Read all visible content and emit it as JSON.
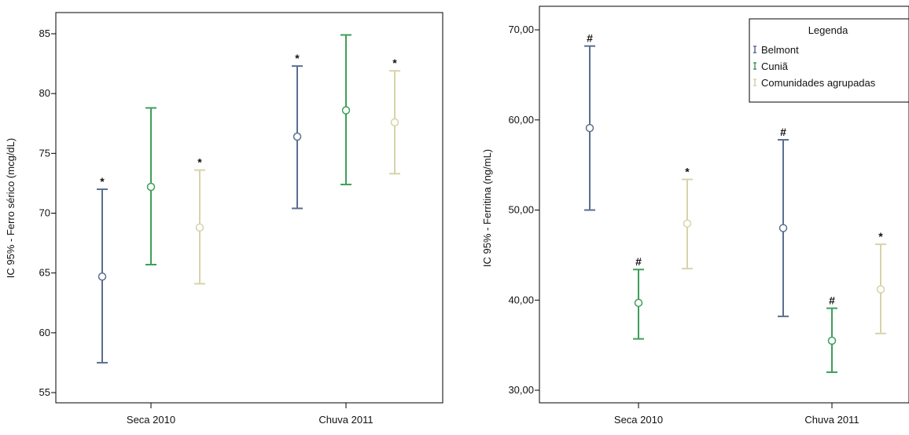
{
  "chart_data": [
    {
      "type": "errorbar",
      "ylabel": "IC 95% - Ferro sérico (mcg/dL)",
      "categories": [
        "Seca 2010",
        "Chuva 2011"
      ],
      "ylim": [
        53,
        86
      ],
      "yticks": [
        "55",
        "60",
        "65",
        "70",
        "75",
        "80",
        "85"
      ],
      "series": [
        {
          "color": "#5b6e8f",
          "mean": [
            64.7,
            76.4
          ],
          "lower": [
            57.5,
            70.4
          ],
          "upper": [
            72.0,
            82.3
          ],
          "markers": [
            "*",
            "*"
          ]
        },
        {
          "color": "#3f9e5a",
          "mean": [
            72.2,
            78.6
          ],
          "lower": [
            65.7,
            72.4
          ],
          "upper": [
            78.8,
            84.9
          ],
          "markers": [
            "",
            ""
          ]
        },
        {
          "color": "#d8d3a8",
          "mean": [
            68.8,
            77.6
          ],
          "lower": [
            64.1,
            73.3
          ],
          "upper": [
            73.6,
            81.9
          ],
          "markers": [
            "*",
            "*"
          ]
        }
      ]
    },
    {
      "type": "errorbar",
      "ylabel": "IC 95% - Ferritina (ng/mL)",
      "categories": [
        "Seca 2010",
        "Chuva 2011"
      ],
      "ylim": [
        28,
        71
      ],
      "yticks": [
        "30,00",
        "40,00",
        "50,00",
        "60,00",
        "70,00"
      ],
      "series": [
        {
          "name": "Belmont",
          "color": "#5b6e8f",
          "mean": [
            59.1,
            48.0
          ],
          "lower": [
            50.0,
            38.2
          ],
          "upper": [
            68.2,
            57.8
          ],
          "markers": [
            "#",
            "#"
          ]
        },
        {
          "name": "Cuniã",
          "color": "#3f9e5a",
          "mean": [
            39.7,
            35.5
          ],
          "lower": [
            35.7,
            32.0
          ],
          "upper": [
            43.4,
            39.1
          ],
          "markers": [
            "#",
            "#"
          ]
        },
        {
          "name": "Comunidades agrupadas",
          "color": "#d8d3a8",
          "mean": [
            48.5,
            41.2
          ],
          "lower": [
            43.5,
            36.3
          ],
          "upper": [
            53.4,
            46.2
          ],
          "markers": [
            "*",
            "*"
          ]
        }
      ],
      "legend": {
        "title": "Legenda",
        "placement": "top-right"
      }
    }
  ]
}
